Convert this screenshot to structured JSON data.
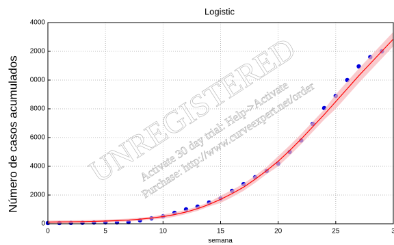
{
  "chart_data": {
    "type": "scatter",
    "title": "Logistic",
    "x_label": "semana",
    "y_label": "Número de casos acumulados",
    "xlim": [
      0,
      30
    ],
    "xticks": [
      0,
      5,
      10,
      15,
      20,
      25,
      {
        "value": 30,
        "label": "3"
      }
    ],
    "ylim": [
      0,
      14000
    ],
    "yticks": [
      0,
      2000,
      4000,
      6000,
      8000,
      {
        "value": 10000,
        "label": "0000"
      },
      {
        "value": 12000,
        "label": "2000"
      },
      {
        "value": 14000,
        "label": "4000"
      }
    ],
    "grid": true,
    "series": [
      {
        "color": "#0000dd",
        "x": [
          0,
          1,
          2,
          3,
          4,
          5,
          6,
          7,
          8,
          9,
          10,
          11,
          12,
          13,
          14,
          15,
          16,
          17,
          18,
          19,
          20,
          21,
          22,
          23,
          24,
          25,
          26,
          27,
          28,
          29
        ],
        "values": [
          50,
          50,
          60,
          70,
          90,
          100,
          100,
          120,
          240,
          380,
          520,
          760,
          1000,
          1190,
          1480,
          1760,
          2290,
          2760,
          3240,
          3670,
          4190,
          5000,
          5800,
          6950,
          8050,
          8900,
          10000,
          10950,
          11600,
          12000
        ]
      },
      {
        "color": "#ff0000",
        "band_color": "#f7b3b8",
        "x": [
          0,
          1,
          2,
          3,
          4,
          5,
          6,
          7,
          8,
          9,
          10,
          11,
          12,
          13,
          14,
          15,
          16,
          17,
          18,
          19,
          20,
          21,
          22,
          23,
          24,
          25,
          26,
          27,
          28,
          29,
          30
        ],
        "values": [
          120,
          130,
          140,
          150,
          170,
          190,
          220,
          260,
          320,
          400,
          500,
          640,
          820,
          1050,
          1350,
          1700,
          2100,
          2550,
          3100,
          3700,
          4350,
          5100,
          5900,
          6750,
          7600,
          8500,
          9400,
          10300,
          11150,
          12000,
          12850
        ],
        "upper": [
          220,
          230,
          240,
          250,
          270,
          290,
          320,
          360,
          420,
          500,
          650,
          790,
          970,
          1200,
          1500,
          1950,
          2350,
          2800,
          3350,
          3950,
          4700,
          5450,
          6250,
          7100,
          7950,
          9000,
          9900,
          10800,
          11650,
          12500,
          13350
        ],
        "lower": [
          20,
          30,
          40,
          50,
          70,
          90,
          120,
          160,
          220,
          300,
          350,
          490,
          670,
          900,
          1200,
          1450,
          1850,
          2300,
          2850,
          3450,
          4000,
          4750,
          5550,
          6400,
          7250,
          8000,
          8900,
          9800,
          10650,
          11500,
          12350
        ]
      }
    ]
  },
  "watermark": {
    "line1": "UNREGISTERED",
    "line2": "Activate 30 day trial: Help->Activate",
    "line3": "Purchase: http://www.curveexpert.net/order"
  }
}
